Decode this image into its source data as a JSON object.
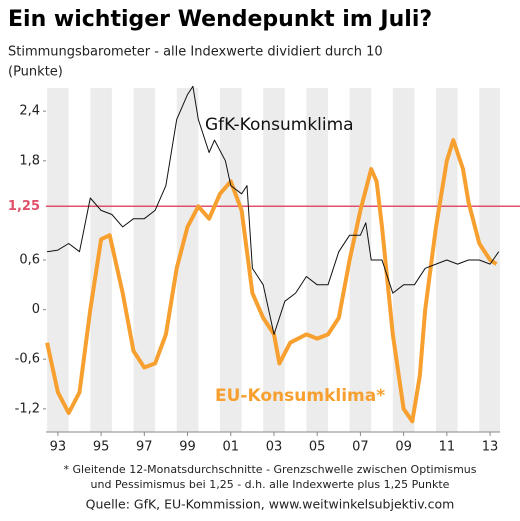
{
  "chart_data": {
    "type": "line",
    "title": "Ein wichtiger Wendepunkt im Juli?",
    "subtitle": "Stimmungsbarometer - alle Indexwerte dividiert durch 10",
    "unit_label": "(Punkte)",
    "footnote": [
      "* Gleitende 12-Monatsdurchschnitte - Grenzschwelle zwischen Optimismus",
      "und Pessimismus bei 1,25 - d.h. alle Indexwerte plus 1,25 Punkte"
    ],
    "source": "Quelle: GfK, EU-Kommission, www.weitwinkelsubjektiv.com",
    "threshold": {
      "value": 1.25,
      "label": "1,25",
      "color": "#e0506a"
    },
    "xlim": [
      1992.45,
      2013.46
    ],
    "xticks": [
      {
        "value": 1993,
        "label": "93"
      },
      {
        "value": 1995,
        "label": "95"
      },
      {
        "value": 1997,
        "label": "97"
      },
      {
        "value": 1999,
        "label": "99"
      },
      {
        "value": 2001,
        "label": "01"
      },
      {
        "value": 2003,
        "label": "03"
      },
      {
        "value": 2005,
        "label": "05"
      },
      {
        "value": 2007,
        "label": "07"
      },
      {
        "value": 2009,
        "label": "09"
      },
      {
        "value": 2011,
        "label": "11"
      },
      {
        "value": 2013,
        "label": "13"
      }
    ],
    "ylim": [
      -1.48,
      2.68
    ],
    "yticks": [
      {
        "value": 2.4,
        "label": "2,4"
      },
      {
        "value": 1.8,
        "label": "1,8"
      },
      {
        "value": 0.6,
        "label": "0,6"
      },
      0,
      {
        "value": -0.6,
        "label": "-0,6"
      },
      {
        "value": -1.2,
        "label": "-1,2"
      }
    ],
    "grid": "alternating-year-bands",
    "series": [
      {
        "name": "GfK-Konsumklima",
        "color": "#111111",
        "x": [
          1992.5,
          1993,
          1993.5,
          1994,
          1994.5,
          1995,
          1995.5,
          1996,
          1996.5,
          1997,
          1997.5,
          1998,
          1998.5,
          1999,
          1999.25,
          1999.5,
          2000,
          2000.25,
          2000.75,
          2001,
          2001.5,
          2001.75,
          2002,
          2002.5,
          2003,
          2003.5,
          2004,
          2004.5,
          2005,
          2005.5,
          2006,
          2006.5,
          2007,
          2007.25,
          2007.5,
          2008,
          2008.5,
          2009,
          2009.5,
          2010,
          2010.5,
          2011,
          2011.5,
          2012,
          2012.5,
          2013,
          2013.4
        ],
        "values": [
          0.7,
          0.72,
          0.8,
          0.7,
          1.35,
          1.2,
          1.15,
          1.0,
          1.1,
          1.1,
          1.2,
          1.5,
          2.3,
          2.6,
          2.7,
          2.3,
          1.9,
          2.05,
          1.8,
          1.5,
          1.4,
          1.5,
          0.5,
          0.3,
          -0.3,
          0.1,
          0.2,
          0.4,
          0.3,
          0.3,
          0.7,
          0.9,
          0.9,
          1.05,
          0.6,
          0.6,
          0.2,
          0.3,
          0.3,
          0.5,
          0.55,
          0.6,
          0.55,
          0.6,
          0.6,
          0.55,
          0.7
        ]
      },
      {
        "name": "EU-Konsumklima*",
        "color": "#f7a030",
        "x": [
          1992.5,
          1993,
          1993.5,
          1994,
          1994.5,
          1995,
          1995.4,
          1996,
          1996.5,
          1997,
          1997.5,
          1998,
          1998.5,
          1999,
          1999.5,
          2000,
          2000.5,
          2001,
          2001.5,
          2002,
          2002.5,
          2003,
          2003.25,
          2003.75,
          2004.5,
          2005,
          2005.5,
          2006,
          2006.5,
          2007,
          2007.5,
          2007.75,
          2008,
          2008.5,
          2009,
          2009.4,
          2009.75,
          2010,
          2010.5,
          2011,
          2011.3,
          2011.75,
          2012,
          2012.5,
          2013,
          2013.3
        ],
        "values": [
          -0.4,
          -1.0,
          -1.25,
          -1.0,
          0.0,
          0.85,
          0.9,
          0.2,
          -0.5,
          -0.7,
          -0.65,
          -0.3,
          0.5,
          1.0,
          1.25,
          1.1,
          1.4,
          1.55,
          1.2,
          0.2,
          -0.1,
          -0.3,
          -0.65,
          -0.4,
          -0.3,
          -0.35,
          -0.3,
          -0.1,
          0.6,
          1.2,
          1.7,
          1.55,
          1.0,
          -0.3,
          -1.2,
          -1.35,
          -0.8,
          0.0,
          1.0,
          1.8,
          2.05,
          1.7,
          1.3,
          0.8,
          0.6,
          0.55
        ]
      }
    ]
  }
}
